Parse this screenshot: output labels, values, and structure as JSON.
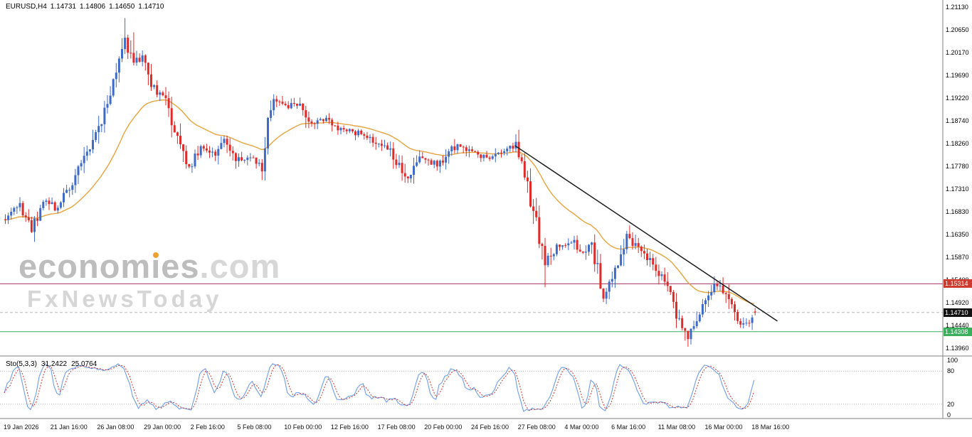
{
  "quote": {
    "symbol_period": "EURUSD,H4",
    "open": "1.14731",
    "high": "1.14806",
    "low": "1.14650",
    "close": "1.14710"
  },
  "watermark": {
    "brand_pre": "econom",
    "brand_i": "i",
    "brand_post": "es",
    "brand_domain": ".com",
    "tagline": "FxNewsToday"
  },
  "price_axis": {
    "ticks": [
      "1.21130",
      "1.20650",
      "1.20170",
      "1.19690",
      "1.19220",
      "1.18740",
      "1.18260",
      "1.17780",
      "1.17310",
      "1.16830",
      "1.16350",
      "1.15870",
      "1.15400",
      "1.14920",
      "1.14440",
      "1.13960"
    ]
  },
  "time_axis": {
    "labels": [
      "19 Jan 2026",
      "21 Jan 16:00",
      "26 Jan 08:00",
      "29 Jan 00:00",
      "2 Feb 16:00",
      "5 Feb 08:00",
      "10 Feb 00:00",
      "12 Feb 16:00",
      "17 Feb 08:00",
      "20 Feb 00:00",
      "24 Feb 16:00",
      "27 Feb 08:00",
      "4 Mar 00:00",
      "6 Mar 16:00",
      "11 Mar 08:00",
      "16 Mar 00:00",
      "18 Mar 16:00"
    ]
  },
  "indicator": {
    "name": "Sto(5,3,3)",
    "main_value": "31.2422",
    "signal_value": "25.0764",
    "ticks": [
      "100",
      "80",
      "20",
      "0"
    ],
    "levels": [
      80,
      20
    ],
    "main_color": "#6D9EEB",
    "signal_color": "#CC3333"
  },
  "levels": [
    {
      "price": 1.15314,
      "label": "1.15314",
      "line_color": "#A43360",
      "label_bg": "#CE3B2E",
      "style": "solid",
      "role": "resistance"
    },
    {
      "price": 1.1471,
      "label": "1.14710",
      "line_color": "#B8B8B8",
      "label_bg": "#111111",
      "style": "dash",
      "role": "current-price"
    },
    {
      "price": 1.14308,
      "label": "1.14308",
      "line_color": "#3AAE5C",
      "label_bg": "#3AAE5C",
      "style": "solid",
      "role": "support"
    }
  ],
  "chart_data": {
    "type": "candlestick",
    "symbol": "EURUSD",
    "timeframe": "H4",
    "title": "EURUSD H4 with moving average, descending trendline, horizontal levels and Stochastic(5,3,3)",
    "ylim": [
      1.1396,
      1.2113
    ],
    "bars": 258,
    "last_candle": {
      "open": 1.14731,
      "high": 1.14806,
      "low": 1.1465,
      "close": 1.1471
    },
    "price_path": [
      [
        0,
        1.167
      ],
      [
        5,
        1.17
      ],
      [
        9,
        1.1645
      ],
      [
        13,
        1.171
      ],
      [
        17,
        1.169
      ],
      [
        23,
        1.1745
      ],
      [
        30,
        1.183
      ],
      [
        36,
        1.193
      ],
      [
        41,
        1.205
      ],
      [
        44,
        1.199
      ],
      [
        47,
        1.2015
      ],
      [
        51,
        1.194
      ],
      [
        55,
        1.1915
      ],
      [
        58,
        1.186
      ],
      [
        63,
        1.1775
      ],
      [
        67,
        1.1815
      ],
      [
        72,
        1.1805
      ],
      [
        75,
        1.1835
      ],
      [
        80,
        1.179
      ],
      [
        85,
        1.18
      ],
      [
        88,
        1.1775
      ],
      [
        90,
        1.188
      ],
      [
        93,
        1.192
      ],
      [
        97,
        1.19
      ],
      [
        101,
        1.1915
      ],
      [
        104,
        1.1865
      ],
      [
        108,
        1.188
      ],
      [
        113,
        1.1862
      ],
      [
        118,
        1.1852
      ],
      [
        123,
        1.1845
      ],
      [
        127,
        1.1832
      ],
      [
        132,
        1.1812
      ],
      [
        138,
        1.1748
      ],
      [
        143,
        1.18
      ],
      [
        148,
        1.1782
      ],
      [
        155,
        1.1825
      ],
      [
        160,
        1.1806
      ],
      [
        166,
        1.1792
      ],
      [
        171,
        1.1812
      ],
      [
        175,
        1.182
      ],
      [
        178,
        1.1755
      ],
      [
        182,
        1.166
      ],
      [
        185,
        1.1572
      ],
      [
        189,
        1.161
      ],
      [
        194,
        1.1622
      ],
      [
        198,
        1.1592
      ],
      [
        201,
        1.1612
      ],
      [
        205,
        1.1506
      ],
      [
        209,
        1.156
      ],
      [
        213,
        1.164
      ],
      [
        217,
        1.1602
      ],
      [
        222,
        1.1572
      ],
      [
        227,
        1.1526
      ],
      [
        230,
        1.1472
      ],
      [
        234,
        1.1416
      ],
      [
        237,
        1.1452
      ],
      [
        241,
        1.1502
      ],
      [
        244,
        1.153
      ],
      [
        248,
        1.1492
      ],
      [
        251,
        1.1452
      ],
      [
        254,
        1.1442
      ],
      [
        257,
        1.1471
      ]
    ],
    "wick_overrides": [
      [
        41,
        "h",
        1.209
      ],
      [
        44,
        "h",
        1.206
      ],
      [
        185,
        "l",
        1.1524
      ],
      [
        205,
        "l",
        1.1493
      ],
      [
        234,
        "l",
        1.1399
      ],
      [
        244,
        "h",
        1.1536
      ]
    ],
    "up_color": "#3E6BC9",
    "down_color": "#E02B2B",
    "ma": {
      "period": 30,
      "color": "#E8A33D"
    },
    "trendline": {
      "from_bar": 175,
      "from_price": 1.1822,
      "to_bar": 265,
      "to_price": 1.1453,
      "color": "#1A1A1A"
    },
    "horizontal_levels": [
      1.15314,
      1.1471,
      1.14308
    ],
    "stochastic": {
      "k": 5,
      "slowing": 3,
      "d": 3,
      "last_main": 31.2422,
      "last_signal": 25.0764,
      "scale": [
        0,
        100
      ],
      "marked_levels": [
        80,
        20
      ]
    },
    "time_range": [
      "19 Jan 2026",
      "18 Mar 16:00"
    ]
  }
}
